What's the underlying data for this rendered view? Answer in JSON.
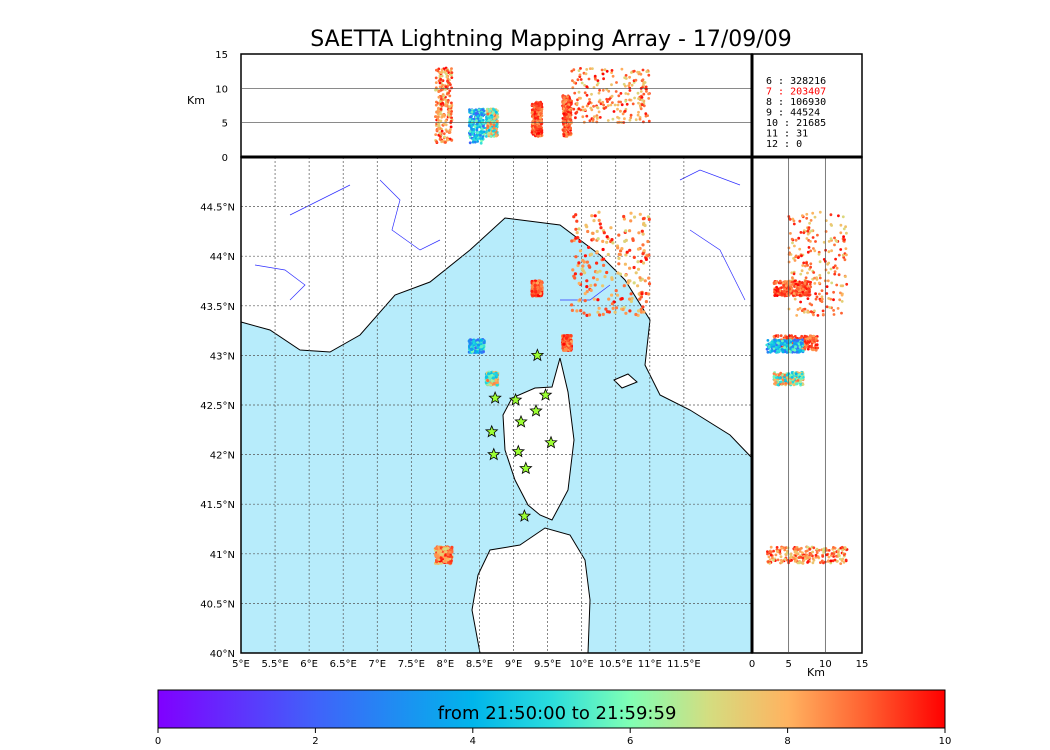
{
  "chart_data": {
    "type": "scatter",
    "title": "SAETTA Lightning Mapping Array - 17/09/09",
    "map": {
      "xlim": [
        5,
        12.5
      ],
      "ylim": [
        40,
        45
      ],
      "x_ticks": [
        "5°E",
        "5.5°E",
        "6°E",
        "6.5°E",
        "7°E",
        "7.5°E",
        "8°E",
        "8.5°E",
        "9°E",
        "9.5°E",
        "10°E",
        "10.5°E",
        "11°E",
        "11.5°E"
      ],
      "y_ticks": [
        "40°N",
        "40.5°N",
        "41°N",
        "41.5°N",
        "42°N",
        "42.5°N",
        "43°N",
        "43.5°N",
        "44°N",
        "44.5°N"
      ],
      "grid": true
    },
    "top_panel": {
      "ylabel": "Km",
      "ylim": [
        0,
        15
      ],
      "y_ticks": [
        "0",
        "5",
        "10",
        "15"
      ]
    },
    "side_panel": {
      "xlabel": "Km",
      "xlim": [
        0,
        15
      ],
      "x_ticks": [
        "0",
        "5",
        "10",
        "15"
      ]
    },
    "station_counts": [
      {
        "label": "6",
        "value": "328216",
        "color": "#000000"
      },
      {
        "label": "7",
        "value": "203407",
        "color": "#ff0000"
      },
      {
        "label": "8",
        "value": "106930",
        "color": "#000000"
      },
      {
        "label": "9",
        "value": "44524",
        "color": "#000000"
      },
      {
        "label": "10",
        "value": "21685",
        "color": "#000000"
      },
      {
        "label": "11",
        "value": "31",
        "color": "#000000"
      },
      {
        "label": "12",
        "value": "0",
        "color": "#000000"
      }
    ],
    "stations": [
      {
        "lon": 9.35,
        "lat": 43.0
      },
      {
        "lon": 8.73,
        "lat": 42.57
      },
      {
        "lon": 9.03,
        "lat": 42.55
      },
      {
        "lon": 9.47,
        "lat": 42.6
      },
      {
        "lon": 9.33,
        "lat": 42.44
      },
      {
        "lon": 9.11,
        "lat": 42.33
      },
      {
        "lon": 8.68,
        "lat": 42.23
      },
      {
        "lon": 9.55,
        "lat": 42.12
      },
      {
        "lon": 9.07,
        "lat": 42.03
      },
      {
        "lon": 8.71,
        "lat": 42.0
      },
      {
        "lon": 9.18,
        "lat": 41.86
      },
      {
        "lon": 9.16,
        "lat": 41.38
      }
    ],
    "lightning_clusters": [
      {
        "lon": [
          9.85,
          11.0
        ],
        "lat": [
          43.4,
          44.45
        ],
        "alt": [
          5,
          13
        ],
        "value_range": [
          7,
          10
        ]
      },
      {
        "lon": [
          9.27,
          9.42
        ],
        "lat": [
          43.6,
          43.75
        ],
        "alt": [
          3,
          8
        ],
        "value_range": [
          8,
          10
        ]
      },
      {
        "lon": [
          9.72,
          9.85
        ],
        "lat": [
          43.05,
          43.2
        ],
        "alt": [
          3,
          9
        ],
        "value_range": [
          8,
          10
        ]
      },
      {
        "lon": [
          8.35,
          8.57
        ],
        "lat": [
          43.03,
          43.16
        ],
        "alt": [
          2,
          7
        ],
        "value_range": [
          2,
          6
        ]
      },
      {
        "lon": [
          8.6,
          8.77
        ],
        "lat": [
          42.7,
          42.83
        ],
        "alt": [
          3,
          7
        ],
        "value_range": [
          4,
          9
        ]
      },
      {
        "lon": [
          7.85,
          8.1
        ],
        "lat": [
          40.9,
          41.07
        ],
        "alt": [
          2,
          13
        ],
        "value_range": [
          7,
          10
        ]
      }
    ],
    "colorbar": {
      "label": "from 21:50:00 to 21:59:59",
      "ticks": [
        "0",
        "2",
        "4",
        "6",
        "8",
        "10"
      ],
      "range": [
        0,
        10
      ]
    }
  }
}
